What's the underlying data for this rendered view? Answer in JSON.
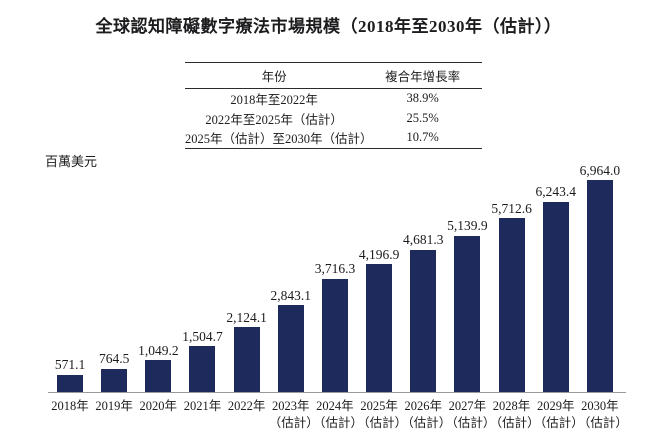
{
  "title": "全球認知障礙數字療法市場規模（2018年至2030年（估計））",
  "y_axis_unit": "百萬美元",
  "cagr_table": {
    "headers": {
      "period": "年份",
      "cagr": "複合年增長率"
    },
    "rows": [
      {
        "period": "2018年至2022年",
        "cagr": "38.9%"
      },
      {
        "period": "2022年至2025年（估計）",
        "cagr": "25.5%"
      },
      {
        "period": "2025年（估計）至2030年（估計）",
        "cagr": "10.7%"
      }
    ]
  },
  "chart_data": {
    "type": "bar",
    "title": "全球認知障礙數字療法市場規模（2018年至2030年（估計））",
    "ylabel": "百萬美元",
    "xlabel": "",
    "ylim": [
      0,
      6964
    ],
    "grid": false,
    "legend": false,
    "bar_color": "#1f2a5c",
    "axis_color": "#9a9a9a",
    "categories": [
      "2018年",
      "2019年",
      "2020年",
      "2021年",
      "2022年",
      "2023年（估計）",
      "2024年（估計）",
      "2025年（估計）",
      "2026年（估計）",
      "2027年（估計）",
      "2028年（估計）",
      "2029年（估計）",
      "2030年（估計）"
    ],
    "category_line1": [
      "2018年",
      "2019年",
      "2020年",
      "2021年",
      "2022年",
      "2023年",
      "2024年",
      "2025年",
      "2026年",
      "2027年",
      "2028年",
      "2029年",
      "2030年"
    ],
    "category_line2": [
      "",
      "",
      "",
      "",
      "",
      "（估計）",
      "（估計）",
      "（估計）",
      "（估計）",
      "（估計）",
      "（估計）",
      "（估計）",
      "（估計）"
    ],
    "values": [
      571.1,
      764.5,
      1049.2,
      1504.7,
      2124.1,
      2843.1,
      3716.3,
      4196.9,
      4681.3,
      5139.9,
      5712.6,
      6243.4,
      6964.0
    ],
    "value_labels": [
      "571.1",
      "764.5",
      "1,049.2",
      "1,504.7",
      "2,124.1",
      "2,843.1",
      "3,716.3",
      "4,196.9",
      "4,681.3",
      "5,139.9",
      "5,712.6",
      "6,243.4",
      "6,964.0"
    ]
  }
}
